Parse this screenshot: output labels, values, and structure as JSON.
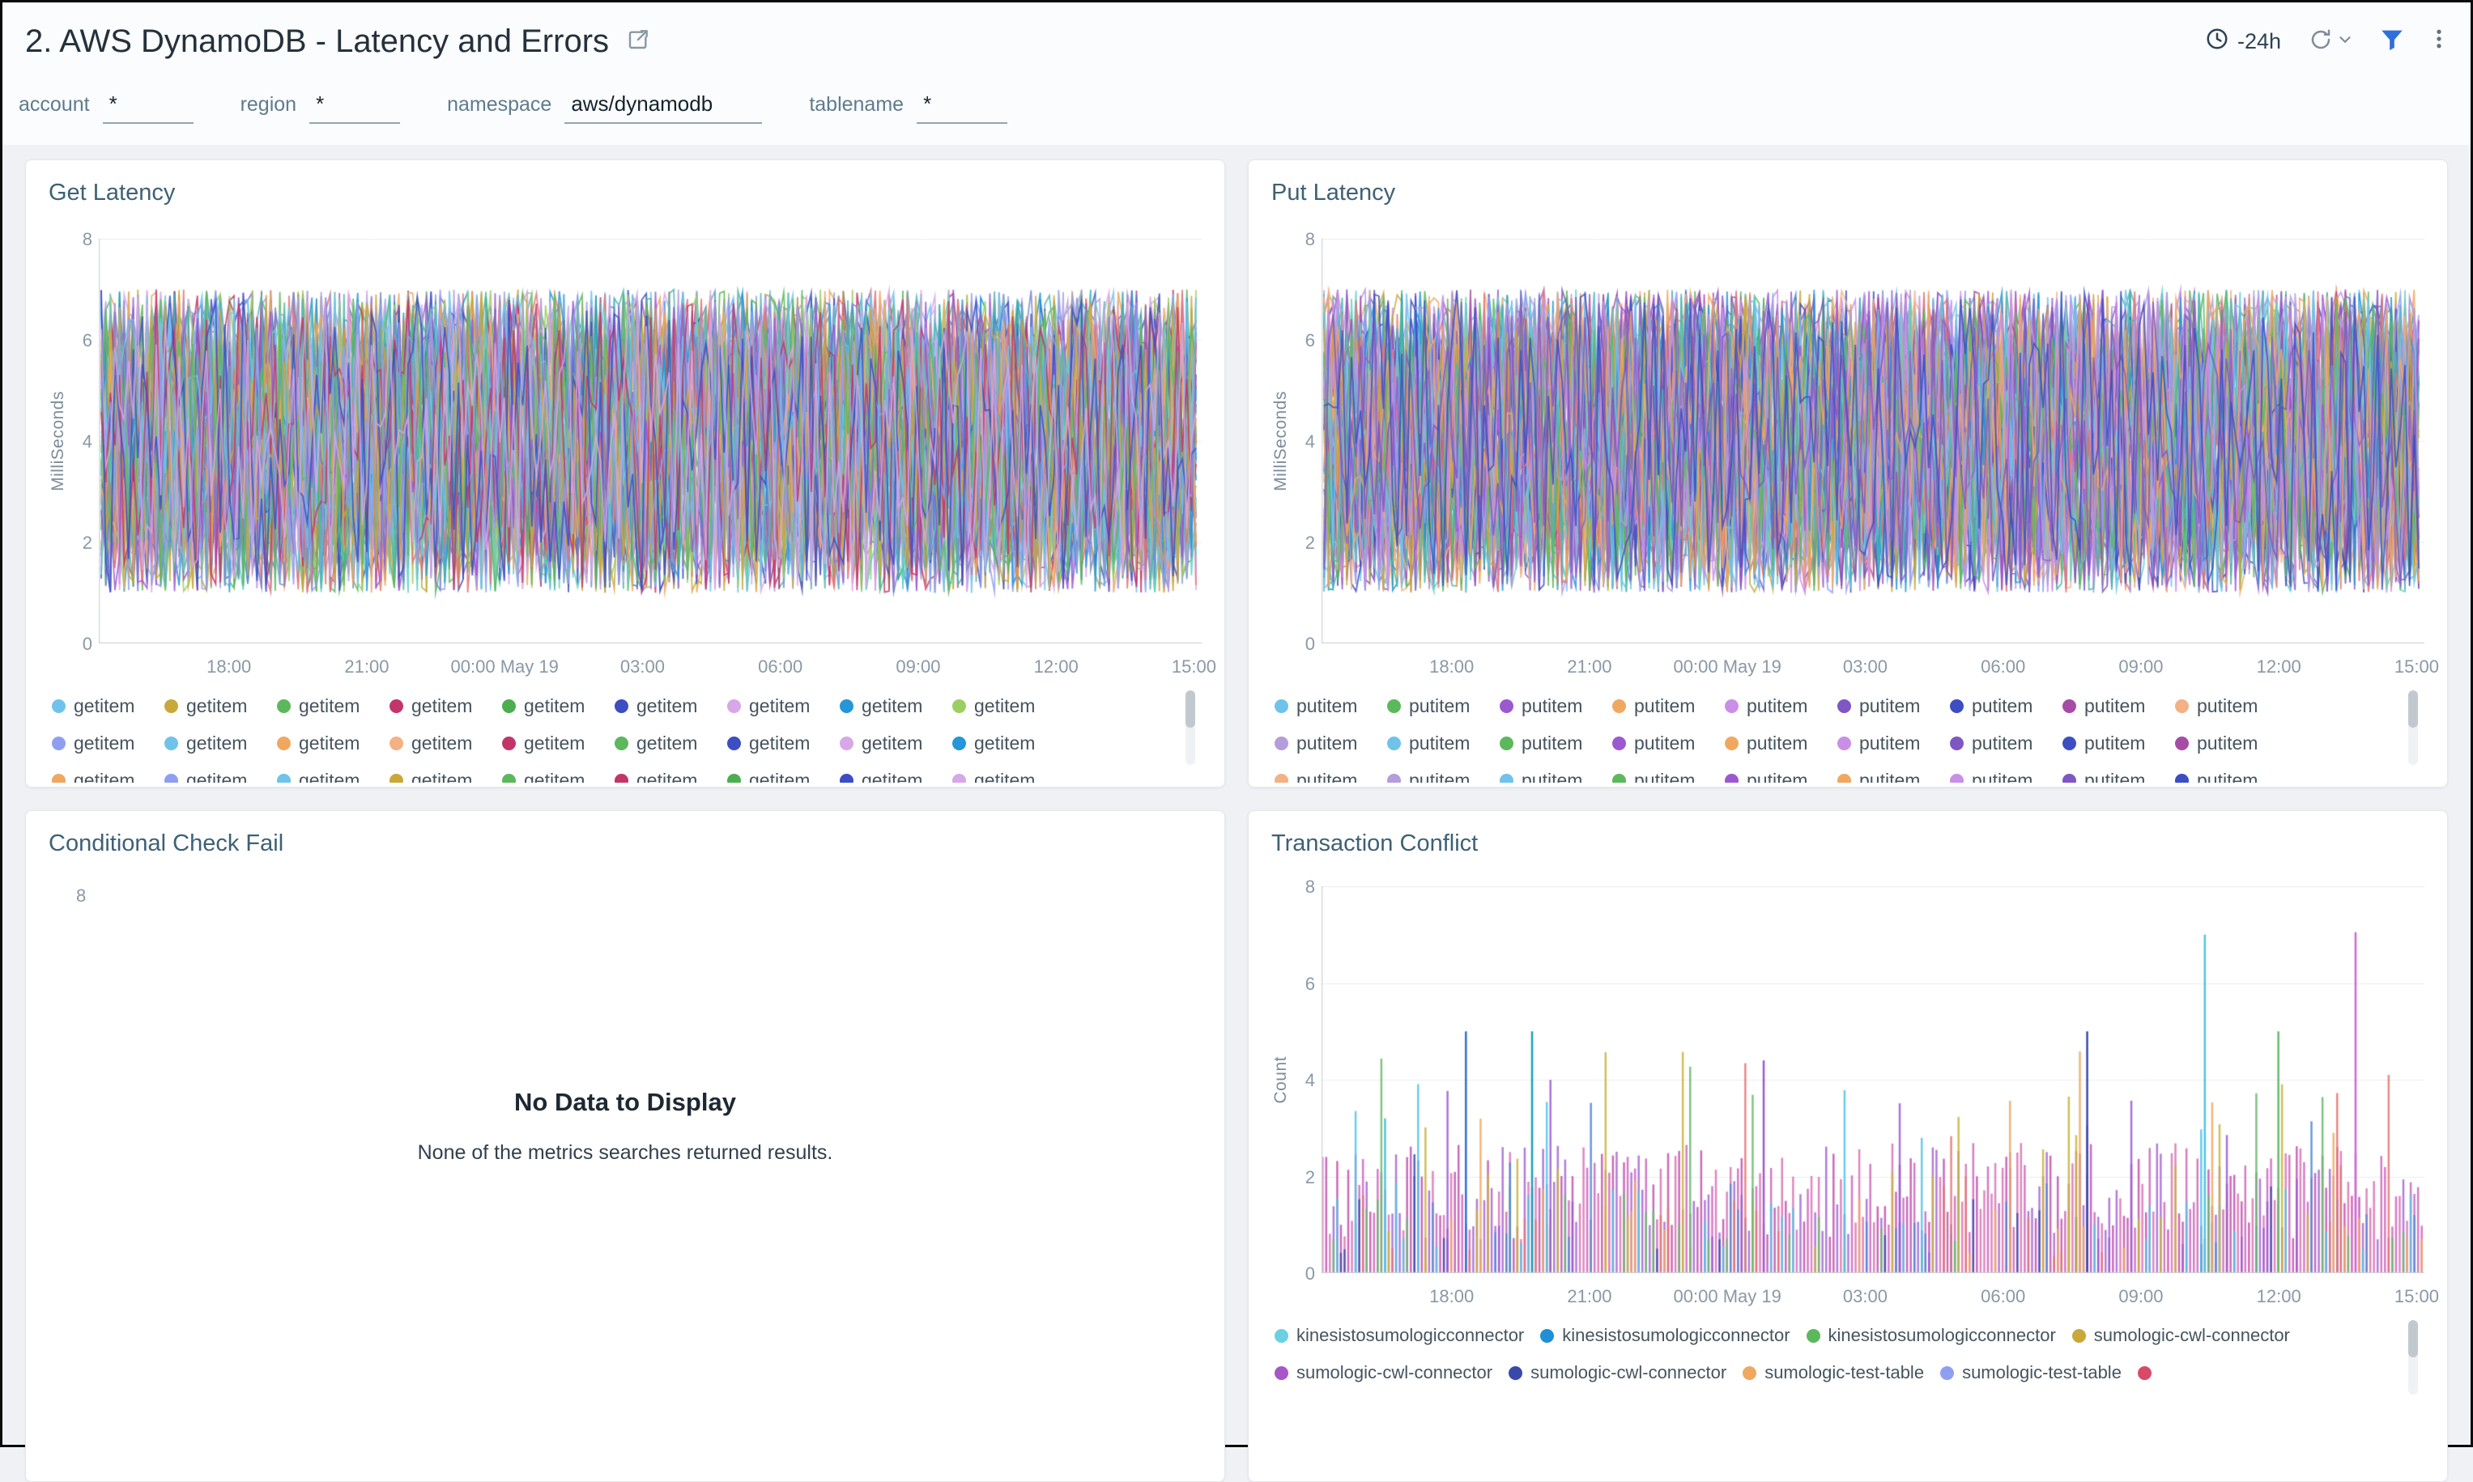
{
  "header": {
    "title": "2. AWS DynamoDB - Latency and Errors",
    "time_range": "-24h"
  },
  "filters": [
    {
      "label": "account",
      "value": "*"
    },
    {
      "label": "region",
      "value": "*"
    },
    {
      "label": "namespace",
      "value": "aws/dynamodb"
    },
    {
      "label": "tablename",
      "value": "*"
    }
  ],
  "colors": {
    "accent_blue": "#2e6fdb",
    "panel_title": "#3e6175",
    "tick_label": "#8a98a6",
    "legend_text": "#46545f"
  },
  "chart_data": [
    {
      "id": "get-latency",
      "title": "Get Latency",
      "type": "line",
      "ylabel": "MilliSeconds",
      "ylim": [
        0,
        8
      ],
      "yticks": [
        0,
        2,
        4,
        6,
        8
      ],
      "x_ticks": [
        "18:00",
        "21:00",
        "00:00 May 19",
        "03:00",
        "06:00",
        "09:00",
        "12:00",
        "15:00"
      ],
      "x_tick_positions": [
        0.118,
        0.243,
        0.368,
        0.493,
        0.618,
        0.743,
        0.868,
        0.993
      ],
      "noise": {
        "min": 1,
        "max": 7,
        "series": 55,
        "points": 240,
        "seed": 11
      },
      "palette": [
        "#6fc3ea",
        "#c9a83a",
        "#5cb85c",
        "#c2356b",
        "#8f9ff0",
        "#3c4ec2",
        "#d7a7e8",
        "#2596d8",
        "#9ccf63",
        "#b39ddb",
        "#66d0c2",
        "#e57373",
        "#7986cb",
        "#f0a860",
        "#9b59d0",
        "#4db6ac"
      ],
      "legend": {
        "item_width": 139,
        "extra_clipped": 10,
        "items": [
          {
            "label": "getitem",
            "color": "#6fc3ea"
          },
          {
            "label": "getitem",
            "color": "#c9a83a"
          },
          {
            "label": "getitem",
            "color": "#5cb85c"
          },
          {
            "label": "getitem",
            "color": "#c2356b"
          },
          {
            "label": "getitem",
            "color": "#4cae50"
          },
          {
            "label": "getitem",
            "color": "#3c4ec2"
          },
          {
            "label": "getitem",
            "color": "#d7a7e8"
          },
          {
            "label": "getitem",
            "color": "#2596d8"
          },
          {
            "label": "getitem",
            "color": "#9ccf63"
          },
          {
            "label": "getitem",
            "color": "#8f9ff0"
          },
          {
            "label": "getitem",
            "color": "#6fc3ea"
          },
          {
            "label": "getitem",
            "color": "#f0a860"
          },
          {
            "label": "getitem",
            "color": "#f4b183"
          },
          {
            "label": "getitem",
            "color": "#c2356b"
          },
          {
            "label": "getitem",
            "color": "#5cb85c"
          },
          {
            "label": "getitem",
            "color": "#3c4ec2"
          },
          {
            "label": "getitem",
            "color": "#d7a7e8"
          },
          {
            "label": "getitem",
            "color": "#2596d8"
          },
          {
            "label": "getitem",
            "color": "#f0a860"
          },
          {
            "label": "getitem",
            "color": "#8f9ff0"
          }
        ]
      }
    },
    {
      "id": "put-latency",
      "title": "Put Latency",
      "type": "line",
      "ylabel": "MilliSeconds",
      "ylim": [
        0,
        8
      ],
      "yticks": [
        0,
        2,
        4,
        6,
        8
      ],
      "x_ticks": [
        "18:00",
        "21:00",
        "00:00 May 19",
        "03:00",
        "06:00",
        "09:00",
        "12:00",
        "15:00"
      ],
      "x_tick_positions": [
        0.118,
        0.243,
        0.368,
        0.493,
        0.618,
        0.743,
        0.868,
        0.993
      ],
      "noise": {
        "min": 1,
        "max": 7,
        "series": 55,
        "points": 240,
        "seed": 23
      },
      "palette": [
        "#6fc3ea",
        "#5cb85c",
        "#9b59d0",
        "#f0a860",
        "#c98fe8",
        "#7e57c2",
        "#3c4ec2",
        "#a64ca6",
        "#f4b183",
        "#b39ddb",
        "#2596d8",
        "#66d0c2",
        "#e57373",
        "#8f9ff0",
        "#c9a83a",
        "#4db6ac"
      ],
      "legend": {
        "item_width": 139,
        "extra_clipped": 10,
        "items": [
          {
            "label": "putitem",
            "color": "#6fc3ea"
          },
          {
            "label": "putitem",
            "color": "#5cb85c"
          },
          {
            "label": "putitem",
            "color": "#9b59d0"
          },
          {
            "label": "putitem",
            "color": "#f0a860"
          },
          {
            "label": "putitem",
            "color": "#c98fe8"
          },
          {
            "label": "putitem",
            "color": "#7e57c2"
          },
          {
            "label": "putitem",
            "color": "#3c4ec2"
          },
          {
            "label": "putitem",
            "color": "#a64ca6"
          },
          {
            "label": "putitem",
            "color": "#f4b183"
          },
          {
            "label": "putitem",
            "color": "#b39ddb"
          },
          {
            "label": "putitem",
            "color": "#6fc3ea"
          },
          {
            "label": "putitem",
            "color": "#5cb85c"
          },
          {
            "label": "putitem",
            "color": "#9b59d0"
          },
          {
            "label": "putitem",
            "color": "#f0a860"
          },
          {
            "label": "putitem",
            "color": "#c98fe8"
          },
          {
            "label": "putitem",
            "color": "#7e57c2"
          },
          {
            "label": "putitem",
            "color": "#3c4ec2"
          },
          {
            "label": "putitem",
            "color": "#a64ca6"
          },
          {
            "label": "putitem",
            "color": "#f4b183"
          },
          {
            "label": "putitem",
            "color": "#b39ddb"
          }
        ]
      }
    },
    {
      "id": "conditional-check-fail",
      "title": "Conditional Check Fail",
      "type": "empty",
      "ytick_top": "8",
      "message": "No Data to Display",
      "submessage": "None of the metrics searches returned results."
    },
    {
      "id": "transaction-conflict",
      "title": "Transaction Conflict",
      "type": "bar",
      "ylabel": "Count",
      "ylim": [
        0,
        8
      ],
      "yticks": [
        0,
        2,
        4,
        6,
        8
      ],
      "x_ticks": [
        "18:00",
        "21:00",
        "00:00 May 19",
        "03:00",
        "06:00",
        "09:00",
        "12:00",
        "15:00"
      ],
      "x_tick_positions": [
        0.118,
        0.243,
        0.368,
        0.493,
        0.618,
        0.743,
        0.868,
        0.993
      ],
      "bars": {
        "count": 300,
        "seed": 41,
        "base_min": 0.7,
        "base_max": 2.7,
        "base_colors": [
          "#cf6ec0",
          "#c45ab3",
          "#db7ab8",
          "#a86fd6"
        ],
        "spike_prob": 0.15,
        "spike_min": 2.2,
        "spike_max": 4.6,
        "spike_colors": [
          "#4f87d6",
          "#4fc3e7",
          "#66bb6a",
          "#f0a860",
          "#c9b33b",
          "#9b59d0",
          "#3949ab",
          "#e57373"
        ],
        "highlights": [
          {
            "pos": 0.055,
            "value": 3.2,
            "color": "#4fc3e7"
          },
          {
            "pos": 0.13,
            "value": 5.0,
            "color": "#2f6fd6"
          },
          {
            "pos": 0.19,
            "value": 5.0,
            "color": "#17a2b8"
          },
          {
            "pos": 0.4,
            "value": 4.4,
            "color": "#9b59d0"
          },
          {
            "pos": 0.695,
            "value": 5.0,
            "color": "#3949ab"
          },
          {
            "pos": 0.8,
            "value": 7.0,
            "color": "#4fc3e7"
          },
          {
            "pos": 0.865,
            "value": 5.0,
            "color": "#66bb6a"
          },
          {
            "pos": 0.935,
            "value": 7.05,
            "color": "#cf66d8"
          }
        ]
      },
      "legend": {
        "extra_clipped": 0,
        "items": [
          {
            "label": "kinesistosumologicconnector",
            "color": "#6ad1e3"
          },
          {
            "label": "kinesistosumologicconnector",
            "color": "#1f8fd6"
          },
          {
            "label": "kinesistosumologicconnector",
            "color": "#5cb85c"
          },
          {
            "label": "sumologic-cwl-connector",
            "color": "#c9a83a"
          },
          {
            "label": "sumologic-cwl-connector",
            "color": "#a855c8"
          },
          {
            "label": "sumologic-cwl-connector",
            "color": "#3949ab"
          },
          {
            "label": "sumologic-test-table",
            "color": "#f0a860"
          },
          {
            "label": "sumologic-test-table",
            "color": "#8f9ff0"
          },
          {
            "label": "",
            "color": "#d84a67"
          }
        ]
      }
    }
  ]
}
